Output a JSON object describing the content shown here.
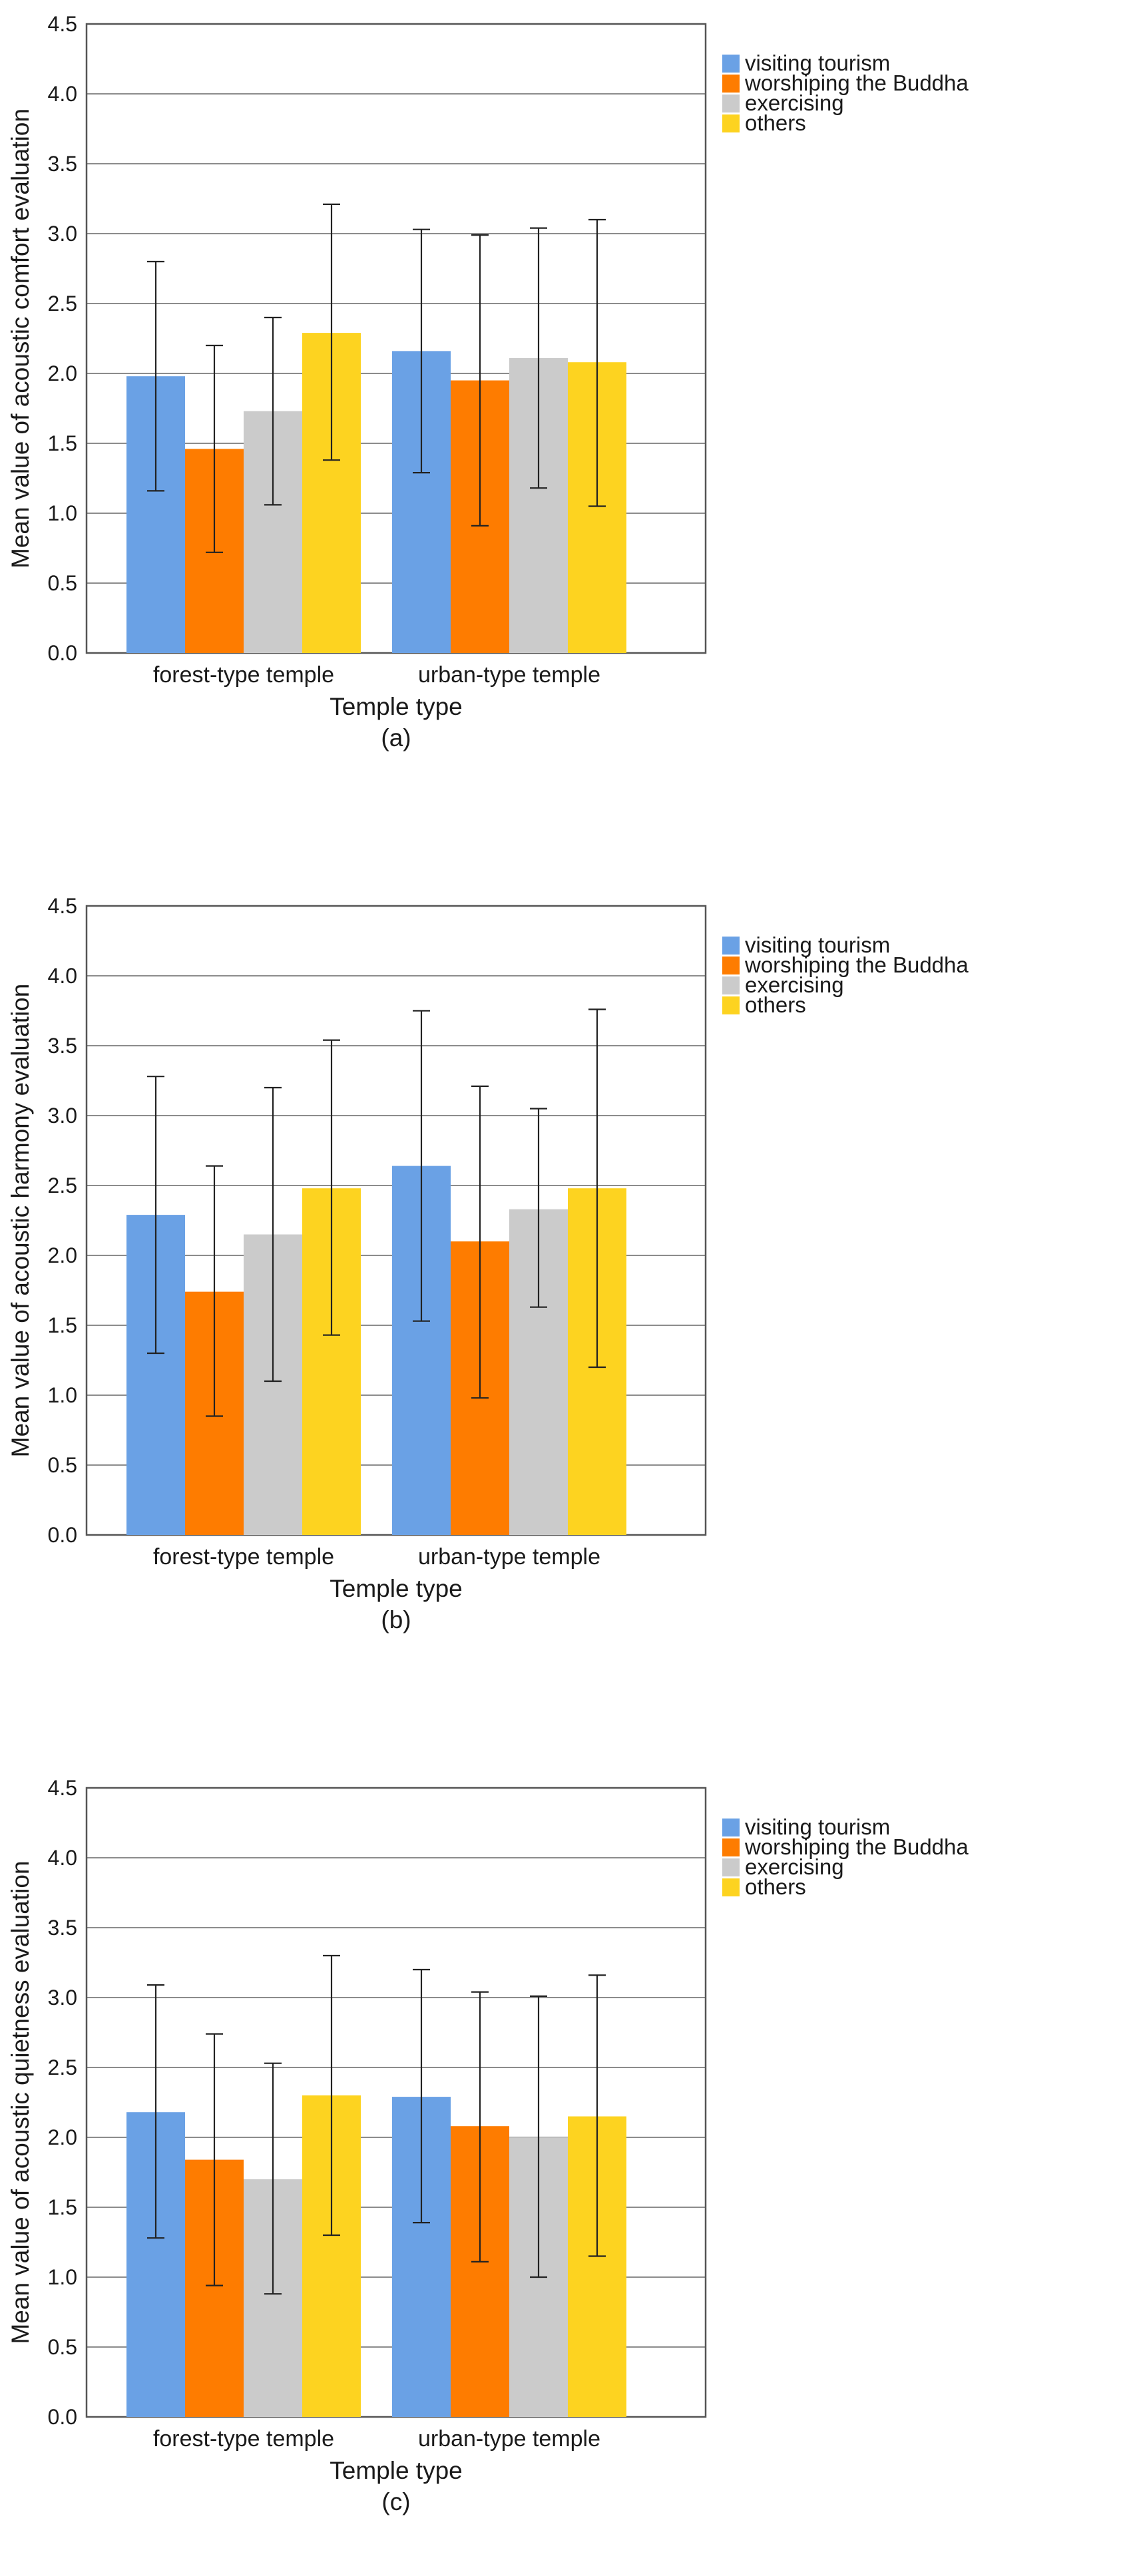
{
  "figure": {
    "panels": [
      "(a)",
      "(b)",
      "(c)"
    ]
  },
  "chart_data": [
    {
      "type": "bar",
      "panel_label": "(a)",
      "xlabel": "Temple type",
      "ylabel": "Mean value of acoustic comfort evaluation",
      "ylim": [
        0,
        4.5
      ],
      "yticks": [
        "0.0",
        "0.5",
        "1.0",
        "1.5",
        "2.0",
        "2.5",
        "3.0",
        "3.5",
        "4.0",
        "4.5"
      ],
      "grid": "horizontal",
      "legend_position": "right",
      "categories": [
        "forest-type temple",
        "urban-type temple"
      ],
      "series": [
        {
          "name": "visiting tourism",
          "color": "#6aa1e5",
          "values": [
            1.98,
            2.16
          ],
          "error_low": [
            1.16,
            1.29
          ],
          "error_high": [
            2.8,
            3.03
          ]
        },
        {
          "name": "worshiping the Buddha",
          "color": "#fe7c00",
          "values": [
            1.46,
            1.95
          ],
          "error_low": [
            0.72,
            0.91
          ],
          "error_high": [
            2.2,
            2.99
          ]
        },
        {
          "name": "exercising",
          "color": "#cbcbcb",
          "values": [
            1.73,
            2.11
          ],
          "error_low": [
            1.06,
            1.18
          ],
          "error_high": [
            2.4,
            3.04
          ]
        },
        {
          "name": "others",
          "color": "#fdd320",
          "values": [
            2.29,
            2.08
          ],
          "error_low": [
            1.38,
            1.05
          ],
          "error_high": [
            3.21,
            3.1
          ]
        }
      ]
    },
    {
      "type": "bar",
      "panel_label": "(b)",
      "xlabel": "Temple type",
      "ylabel": "Mean value of acoustic harmony evaluation",
      "ylim": [
        0,
        4.5
      ],
      "yticks": [
        "0.0",
        "0.5",
        "1.0",
        "1.5",
        "2.0",
        "2.5",
        "3.0",
        "3.5",
        "4.0",
        "4.5"
      ],
      "grid": "horizontal",
      "legend_position": "right",
      "categories": [
        "forest-type temple",
        "urban-type temple"
      ],
      "series": [
        {
          "name": "visiting tourism",
          "color": "#6aa1e5",
          "values": [
            2.29,
            2.64
          ],
          "error_low": [
            1.3,
            1.53
          ],
          "error_high": [
            3.28,
            3.75
          ]
        },
        {
          "name": "worshiping the Buddha",
          "color": "#fe7c00",
          "values": [
            1.74,
            2.1
          ],
          "error_low": [
            0.85,
            0.98
          ],
          "error_high": [
            2.64,
            3.21
          ]
        },
        {
          "name": "exercising",
          "color": "#cbcbcb",
          "values": [
            2.15,
            2.33
          ],
          "error_low": [
            1.1,
            1.63
          ],
          "error_high": [
            3.2,
            3.05
          ]
        },
        {
          "name": "others",
          "color": "#fdd320",
          "values": [
            2.48,
            2.48
          ],
          "error_low": [
            1.43,
            1.2
          ],
          "error_high": [
            3.54,
            3.76
          ]
        }
      ]
    },
    {
      "type": "bar",
      "panel_label": "(c)",
      "xlabel": "Temple type",
      "ylabel": "Mean value of acoustic quietness evaluation",
      "ylim": [
        0,
        4.5
      ],
      "yticks": [
        "0.0",
        "0.5",
        "1.0",
        "1.5",
        "2.0",
        "2.5",
        "3.0",
        "3.5",
        "4.0",
        "4.5"
      ],
      "grid": "horizontal",
      "legend_position": "right",
      "categories": [
        "forest-type temple",
        "urban-type temple"
      ],
      "series": [
        {
          "name": "visiting tourism",
          "color": "#6aa1e5",
          "values": [
            2.18,
            2.29
          ],
          "error_low": [
            1.28,
            1.39
          ],
          "error_high": [
            3.09,
            3.2
          ]
        },
        {
          "name": "worshiping the Buddha",
          "color": "#fe7c00",
          "values": [
            1.84,
            2.08
          ],
          "error_low": [
            0.94,
            1.11
          ],
          "error_high": [
            2.74,
            3.04
          ]
        },
        {
          "name": "exercising",
          "color": "#cbcbcb",
          "values": [
            1.7,
            2.0
          ],
          "error_low": [
            0.88,
            1.0
          ],
          "error_high": [
            2.53,
            3.01
          ]
        },
        {
          "name": "others",
          "color": "#fdd320",
          "values": [
            2.3,
            2.15
          ],
          "error_low": [
            1.3,
            1.15
          ],
          "error_high": [
            3.3,
            3.16
          ]
        }
      ]
    }
  ]
}
